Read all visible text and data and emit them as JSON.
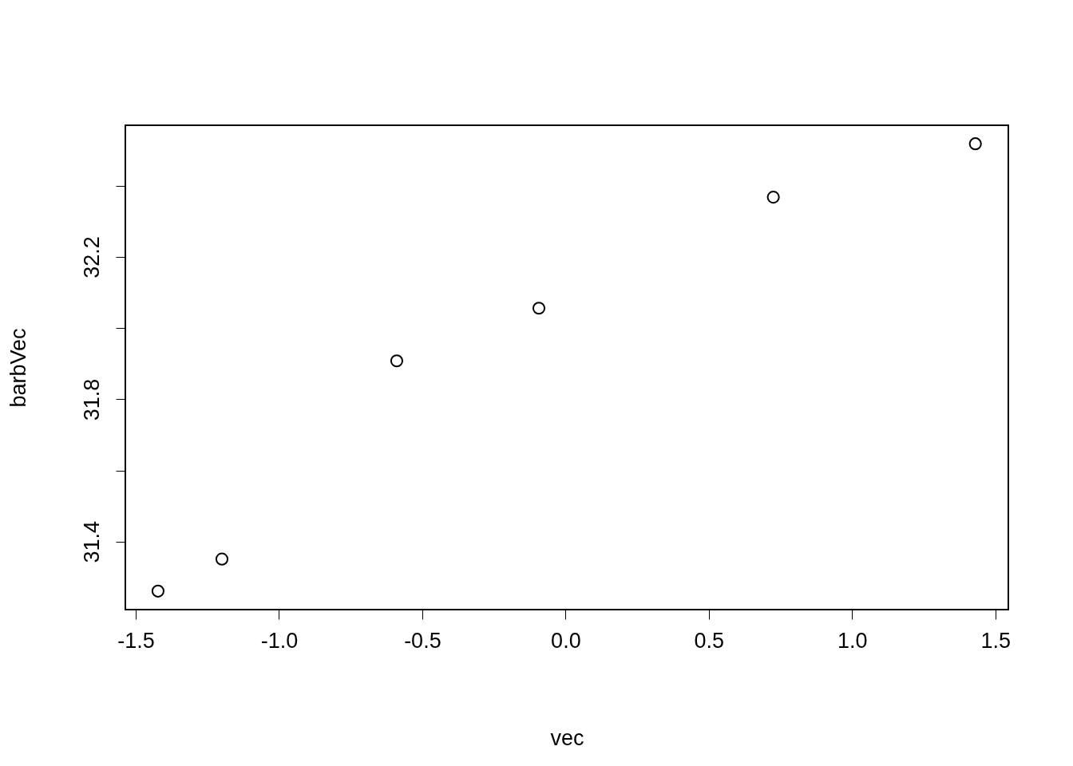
{
  "chart_data": {
    "type": "scatter",
    "xlabel": "vec",
    "ylabel": "barbVec",
    "x": [
      -1.422,
      -1.199,
      -0.589,
      -0.093,
      0.725,
      1.43
    ],
    "values": [
      31.261,
      31.351,
      31.908,
      32.056,
      32.368,
      32.518
    ],
    "color": "#000000",
    "marker": "circle",
    "grid": false,
    "xlim": [
      -1.536,
      1.545
    ],
    "xticks": [
      -1.5,
      {
        "value": -1,
        "label": "-1.0"
      },
      -0.5,
      {
        "value": 0,
        "label": "0.0"
      },
      0.5,
      {
        "value": 1,
        "label": "1.0"
      },
      1.5
    ],
    "ylim": [
      31.209,
      32.57
    ],
    "yticks": [
      31.4,
      {
        "value": 31.6,
        "label": null
      },
      31.8,
      {
        "value": 32.0,
        "label": null
      },
      32.2,
      {
        "value": 32.4,
        "label": null
      }
    ]
  }
}
